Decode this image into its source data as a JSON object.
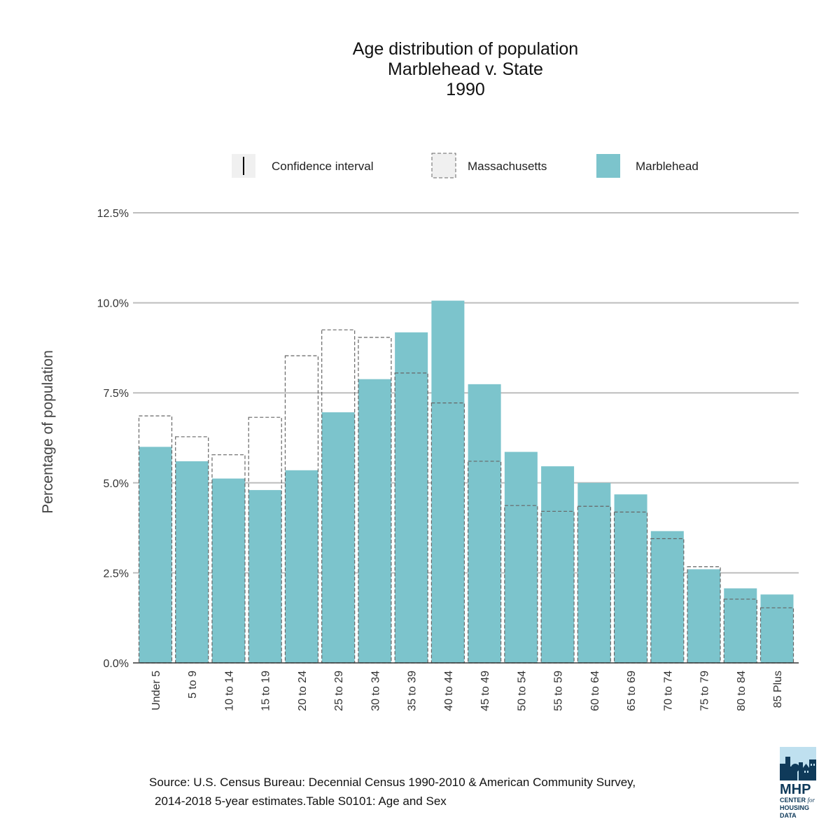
{
  "title": {
    "line1": "Age distribution of population",
    "line2": "Marblehead  v. State",
    "line3": "1990"
  },
  "legend": {
    "confidence_interval": "Confidence interval",
    "state": "Massachusetts",
    "town": "Marblehead"
  },
  "source": {
    "line1": "Source: U.S. Census Bureau: Decennial Census 1990-2010 & American Community Survey,",
    "line2": "2014-2018 5-year estimates.Table S0101: Age and Sex"
  },
  "logo": {
    "name": "MHP",
    "line1": "CENTER",
    "line1_italic": "for",
    "line2": "HOUSING DATA"
  },
  "colors": {
    "town_fill": "#7cc4cc",
    "state_outline": "#666666",
    "grid": "#bdbdbd",
    "axis": "#333333"
  },
  "chart_data": {
    "type": "bar",
    "title": "Age distribution of population Marblehead v. State 1990",
    "xlabel": "",
    "ylabel": "Percentage of population",
    "ylim": [
      0,
      12.5
    ],
    "yticks": [
      0,
      2.5,
      5,
      7.5,
      10,
      12.5
    ],
    "ytick_labels": [
      "0.0%",
      "2.5%",
      "5.0%",
      "7.5%",
      "10.0%",
      "12.5%"
    ],
    "categories": [
      "Under 5",
      "5 to 9",
      "10 to 14",
      "15 to 19",
      "20 to 24",
      "25 to 29",
      "30 to 34",
      "35 to 39",
      "40 to 44",
      "45 to 49",
      "50 to 54",
      "55 to 59",
      "60 to 64",
      "65 to 69",
      "70 to 74",
      "75 to 79",
      "80 to 84",
      "85 Plus"
    ],
    "series": [
      {
        "name": "Marblehead",
        "style": "filled",
        "values": [
          6.0,
          5.6,
          5.12,
          4.8,
          5.35,
          6.96,
          7.88,
          9.18,
          10.06,
          7.74,
          5.86,
          5.46,
          5.0,
          4.68,
          3.66,
          2.6,
          2.07,
          1.9
        ]
      },
      {
        "name": "Massachusetts",
        "style": "dashed-outline",
        "values": [
          6.86,
          6.28,
          5.78,
          6.82,
          8.53,
          9.25,
          9.04,
          8.05,
          7.22,
          5.6,
          4.37,
          4.21,
          4.35,
          4.19,
          3.45,
          2.67,
          1.77,
          1.53
        ]
      }
    ],
    "legend_position": "top"
  }
}
